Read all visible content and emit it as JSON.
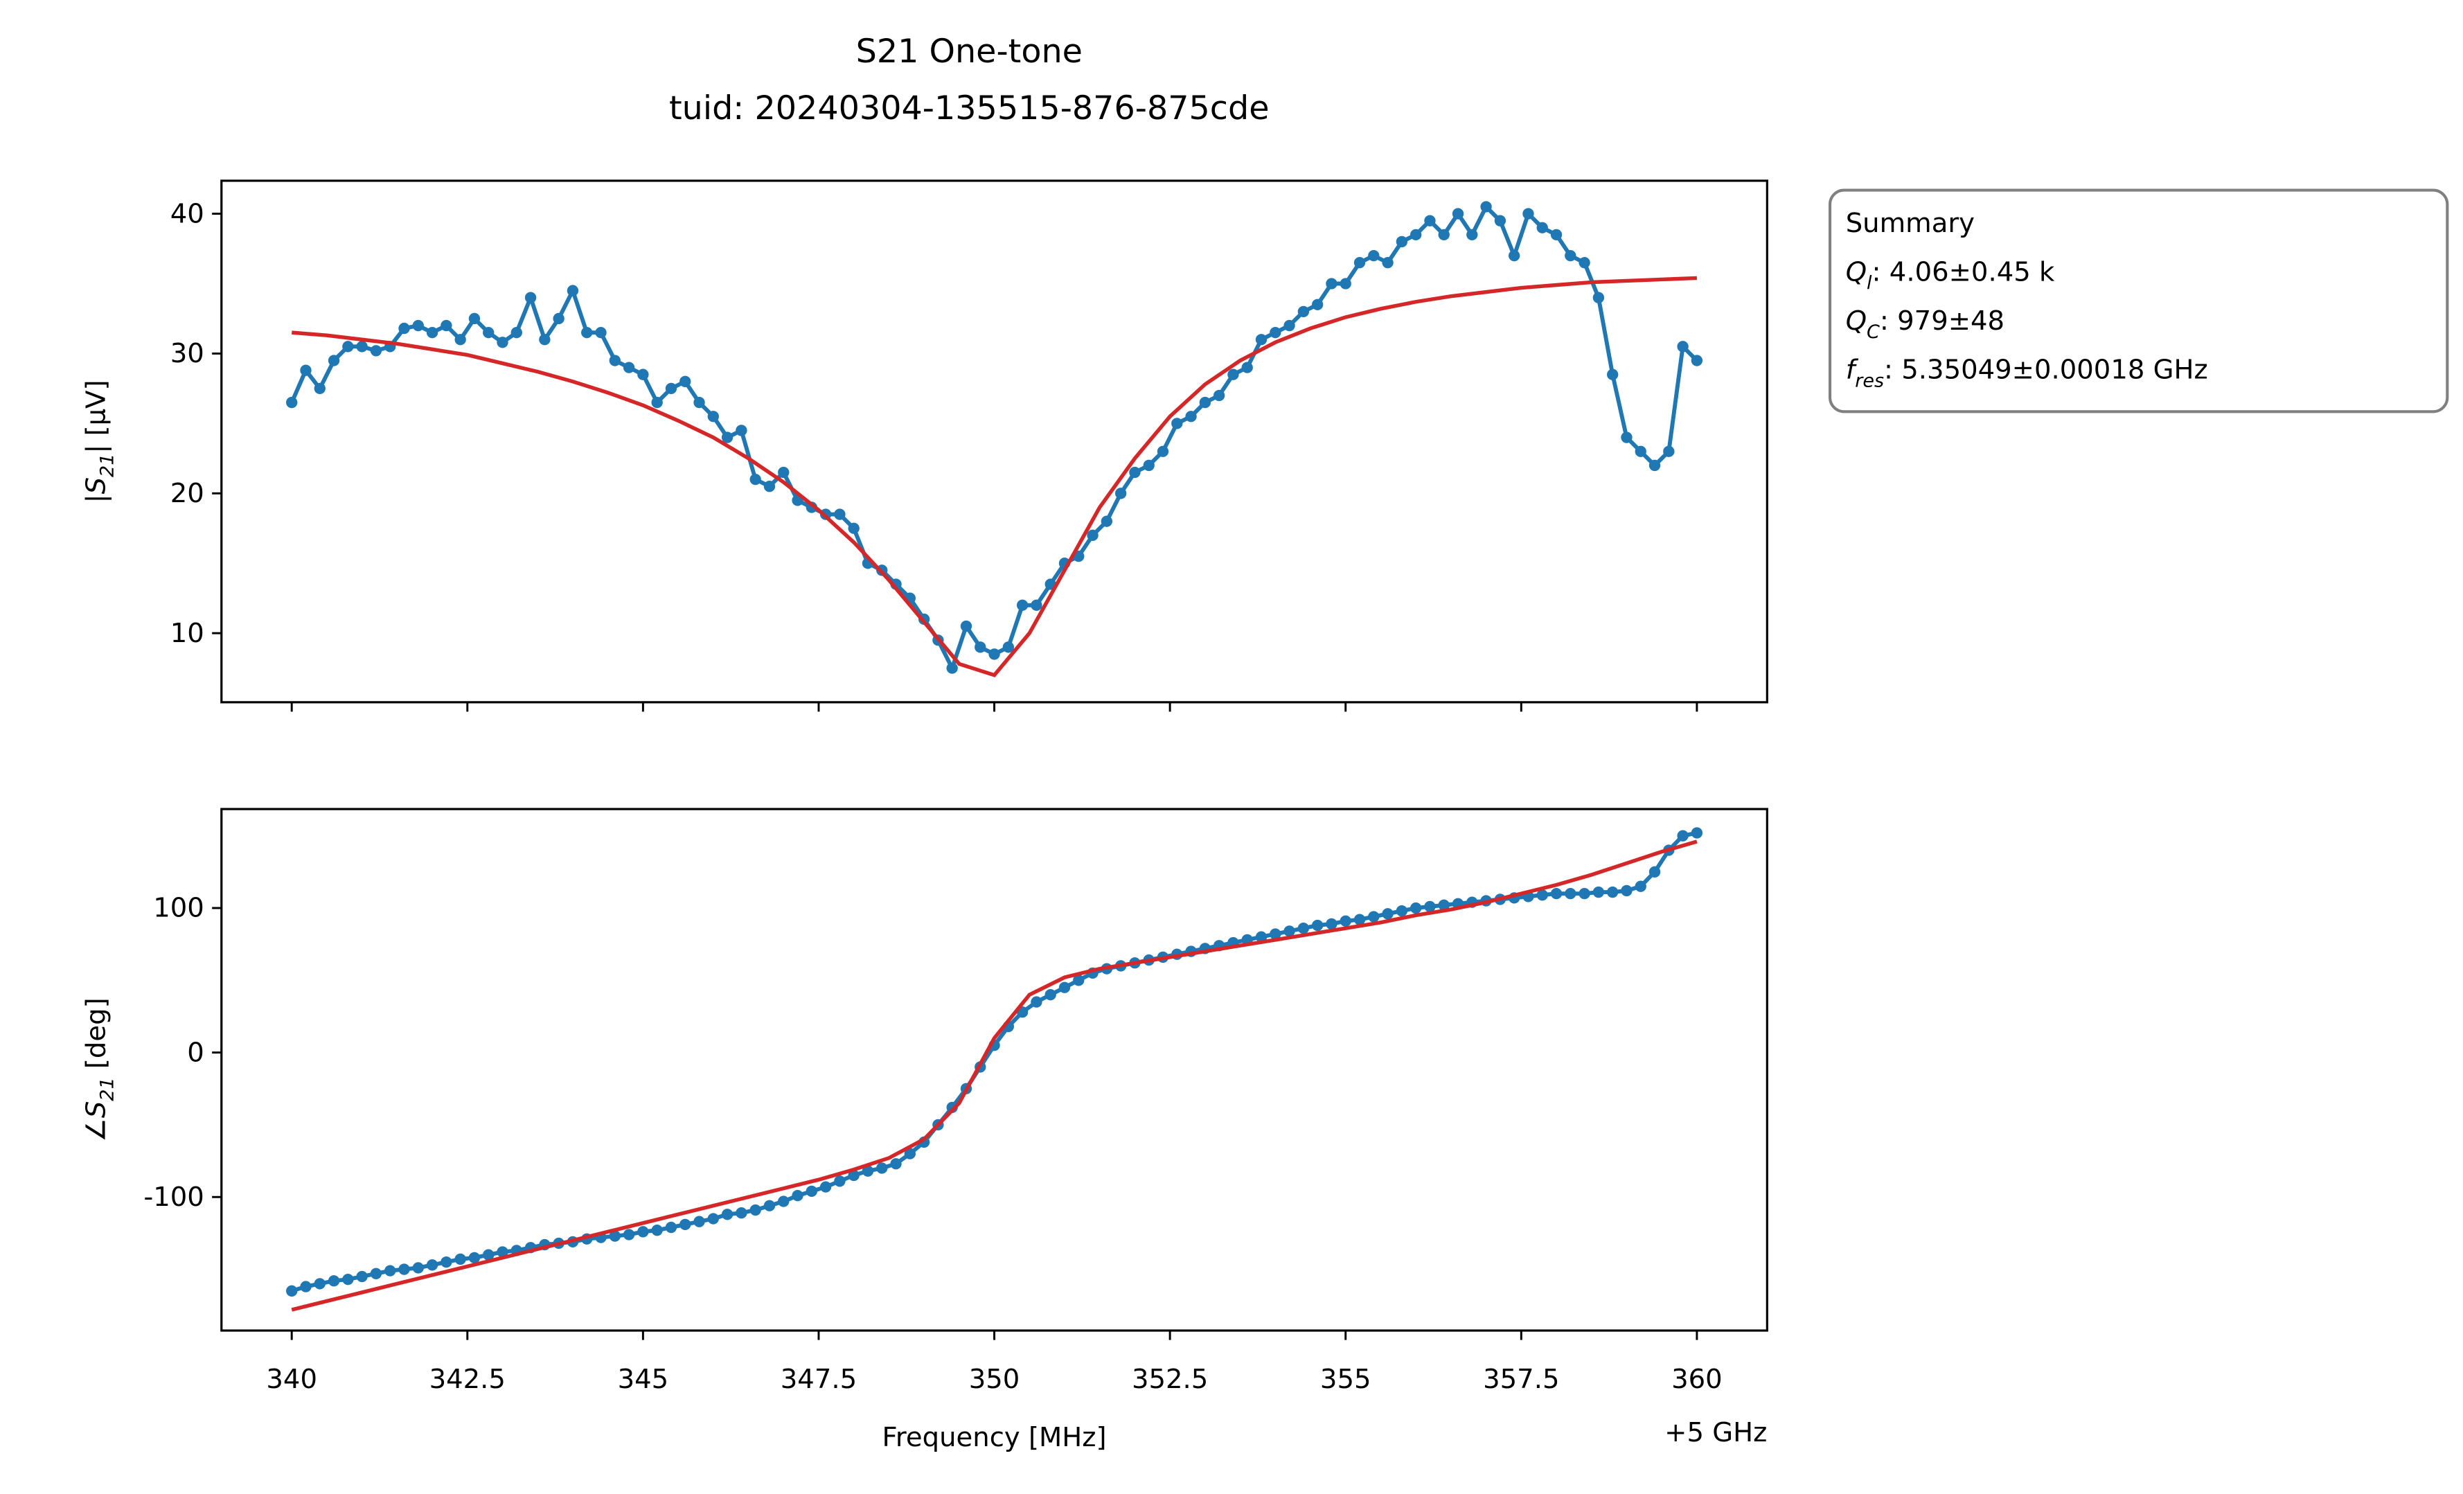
{
  "chart_data": [
    {
      "type": "line",
      "title": "S21 One-tone",
      "subtitle": "tuid: 20240304-135515-876-875cde",
      "ylabel": {
        "prefix": "|",
        "symbol": "S",
        "sub": "21",
        "suffix": "| [µV]"
      },
      "xlim": [
        339,
        361
      ],
      "xticks": [
        340,
        342.5,
        345,
        347.5,
        350,
        352.5,
        355,
        357.5,
        360
      ],
      "ylim": [
        5.06,
        42.36
      ],
      "yticks": [
        10,
        20,
        30,
        40
      ],
      "grid": false,
      "annotation": {
        "title": "Summary",
        "lines": [
          {
            "symbol": "Q",
            "sub": "l",
            "text": ": 4.06±0.45 k"
          },
          {
            "symbol": "Q",
            "sub": "C",
            "text": ": 979±48"
          },
          {
            "symbol": "f",
            "sub": "res",
            "text": ": 5.35049±0.00018 GHz"
          }
        ]
      },
      "series": [
        {
          "color": "#1f77b4",
          "marker": true,
          "x": [
            340,
            340.2,
            340.4,
            340.6,
            340.8,
            341,
            341.2,
            341.4,
            341.6,
            341.8,
            342,
            342.2,
            342.4,
            342.6,
            342.8,
            343,
            343.2,
            343.4,
            343.6,
            343.8,
            344,
            344.2,
            344.4,
            344.6,
            344.8,
            345,
            345.2,
            345.4,
            345.6,
            345.8,
            346,
            346.2,
            346.4,
            346.6,
            346.8,
            347,
            347.2,
            347.4,
            347.6,
            347.8,
            348,
            348.2,
            348.4,
            348.6,
            348.8,
            349,
            349.2,
            349.4,
            349.6,
            349.8,
            350,
            350.2,
            350.4,
            350.6,
            350.8,
            351,
            351.2,
            351.4,
            351.6,
            351.8,
            352,
            352.2,
            352.4,
            352.6,
            352.8,
            353,
            353.2,
            353.4,
            353.6,
            353.8,
            354,
            354.2,
            354.4,
            354.6,
            354.8,
            355,
            355.2,
            355.4,
            355.6,
            355.8,
            356,
            356.2,
            356.4,
            356.6,
            356.8,
            357,
            357.2,
            357.4,
            357.6,
            357.8,
            358,
            358.2,
            358.4,
            358.6,
            358.8,
            359,
            359.2,
            359.4,
            359.6,
            359.8,
            360
          ],
          "values": [
            26.5,
            28.8,
            27.5,
            29.5,
            30.5,
            30.5,
            30.2,
            30.5,
            31.8,
            32,
            31.5,
            32,
            31,
            32.5,
            31.5,
            30.8,
            31.5,
            34,
            31,
            32.5,
            34.5,
            31.5,
            31.5,
            29.5,
            29,
            28.5,
            26.5,
            27.5,
            28,
            26.5,
            25.5,
            24,
            24.5,
            21,
            20.5,
            21.5,
            19.5,
            19,
            18.5,
            18.5,
            17.5,
            15,
            14.5,
            13.5,
            12.5,
            11,
            9.5,
            7.5,
            10.5,
            9,
            8.5,
            9,
            12,
            12,
            13.5,
            15,
            15.5,
            17,
            18,
            20,
            21.5,
            22,
            23,
            25,
            25.5,
            26.5,
            27,
            28.5,
            29,
            31,
            31.5,
            32,
            33,
            33.5,
            35,
            35,
            36.5,
            37,
            36.5,
            38,
            38.5,
            39.5,
            38.5,
            40,
            38.5,
            40.5,
            39.5,
            37,
            40,
            39,
            38.5,
            37,
            36.5,
            34,
            28.5,
            24,
            23,
            22,
            23,
            30.5,
            29.5
          ]
        },
        {
          "color": "#d62728",
          "marker": false,
          "x": [
            340,
            340.5,
            341,
            341.5,
            342,
            342.5,
            343,
            343.5,
            344,
            344.5,
            345,
            345.5,
            346,
            346.5,
            347,
            347.5,
            348,
            348.5,
            349,
            349.5,
            350,
            350.5,
            351,
            351.5,
            352,
            352.5,
            353,
            353.5,
            354,
            354.5,
            355,
            355.5,
            356,
            356.5,
            357,
            357.5,
            358,
            358.5,
            359,
            359.5,
            360
          ],
          "values": [
            31.5,
            31.3,
            31,
            30.7,
            30.3,
            29.9,
            29.3,
            28.7,
            28,
            27.2,
            26.3,
            25.2,
            24,
            22.5,
            20.8,
            18.8,
            16.5,
            13.8,
            10.8,
            7.8,
            7,
            10,
            14.5,
            19,
            22.5,
            25.5,
            27.8,
            29.5,
            30.8,
            31.8,
            32.6,
            33.2,
            33.7,
            34.1,
            34.4,
            34.7,
            34.9,
            35.1,
            35.2,
            35.3,
            35.4
          ]
        }
      ]
    },
    {
      "type": "line",
      "ylabel": {
        "prefix": "∠",
        "symbol": "S",
        "sub": "21",
        "suffix": " [deg]"
      },
      "xlabel": "Frequency [MHz]",
      "x_offset_label": "+5 GHz",
      "xlim": [
        339,
        361
      ],
      "xticks": [
        340,
        342.5,
        345,
        347.5,
        350,
        352.5,
        355,
        357.5,
        360
      ],
      "ylim": [
        -192.4,
        168.5
      ],
      "yticks": [
        -100,
        0,
        100
      ],
      "grid": false,
      "series": [
        {
          "color": "#1f77b4",
          "marker": true,
          "x": [
            340,
            340.2,
            340.4,
            340.6,
            340.8,
            341,
            341.2,
            341.4,
            341.6,
            341.8,
            342,
            342.2,
            342.4,
            342.6,
            342.8,
            343,
            343.2,
            343.4,
            343.6,
            343.8,
            344,
            344.2,
            344.4,
            344.6,
            344.8,
            345,
            345.2,
            345.4,
            345.6,
            345.8,
            346,
            346.2,
            346.4,
            346.6,
            346.8,
            347,
            347.2,
            347.4,
            347.6,
            347.8,
            348,
            348.2,
            348.4,
            348.6,
            348.8,
            349,
            349.2,
            349.4,
            349.6,
            349.8,
            350,
            350.2,
            350.4,
            350.6,
            350.8,
            351,
            351.2,
            351.4,
            351.6,
            351.8,
            352,
            352.2,
            352.4,
            352.6,
            352.8,
            353,
            353.2,
            353.4,
            353.6,
            353.8,
            354,
            354.2,
            354.4,
            354.6,
            354.8,
            355,
            355.2,
            355.4,
            355.6,
            355.8,
            356,
            356.2,
            356.4,
            356.6,
            356.8,
            357,
            357.2,
            357.4,
            357.6,
            357.8,
            358,
            358.2,
            358.4,
            358.6,
            358.8,
            359,
            359.2,
            359.4,
            359.6,
            359.8,
            360
          ],
          "values": [
            -165,
            -162,
            -160,
            -158,
            -157,
            -155,
            -153,
            -151,
            -150,
            -149,
            -147,
            -145,
            -143,
            -142,
            -140,
            -138,
            -137,
            -135,
            -133,
            -132,
            -131,
            -129,
            -128,
            -127,
            -126,
            -124,
            -123,
            -121,
            -119,
            -117,
            -115,
            -112,
            -111,
            -109,
            -106,
            -103,
            -99,
            -96,
            -93,
            -89,
            -85,
            -82,
            -80,
            -77,
            -70,
            -62,
            -50,
            -38,
            -25,
            -10,
            5,
            18,
            28,
            35,
            40,
            45,
            50,
            55,
            58,
            60,
            62,
            64,
            66,
            68,
            70,
            72,
            74,
            76,
            78,
            80,
            82,
            84,
            86,
            88,
            89,
            91,
            92,
            94,
            96,
            98,
            100,
            101,
            102,
            103,
            104,
            105,
            106,
            107,
            108,
            109,
            110,
            110,
            110,
            111,
            111,
            112,
            115,
            125,
            140,
            150,
            152
          ]
        },
        {
          "color": "#d62728",
          "marker": false,
          "x": [
            340,
            340.5,
            341,
            341.5,
            342,
            342.5,
            343,
            343.5,
            344,
            344.5,
            345,
            345.5,
            346,
            346.5,
            347,
            347.5,
            348,
            348.5,
            349,
            349.5,
            350,
            350.5,
            351,
            351.5,
            352,
            352.5,
            353,
            353.5,
            354,
            354.5,
            355,
            355.5,
            356,
            356.5,
            357,
            357.5,
            358,
            358.5,
            359,
            359.5,
            360
          ],
          "values": [
            -178,
            -172,
            -166,
            -160,
            -154,
            -148,
            -142,
            -136,
            -130,
            -124,
            -118,
            -112,
            -106,
            -100,
            -94,
            -88,
            -81,
            -73,
            -60,
            -35,
            10,
            40,
            52,
            58,
            62,
            66,
            70,
            74,
            78,
            82,
            86,
            90,
            95,
            99,
            104,
            110,
            116,
            123,
            131,
            139,
            146
          ]
        }
      ]
    }
  ]
}
